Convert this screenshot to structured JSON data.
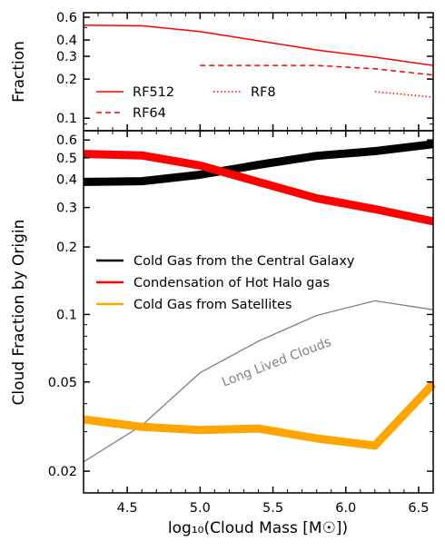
{
  "chart_data": [
    {
      "type": "line",
      "panel": "top",
      "ylabel": "Fraction",
      "yscale": "log",
      "xlim": [
        4.2,
        6.6
      ],
      "ylim": [
        0.08,
        0.65
      ],
      "yticks": [
        {
          "value": 0.6,
          "label": "0.6"
        },
        {
          "value": 0.4,
          "label": "0.4"
        },
        {
          "value": 0.3,
          "label": "0.3"
        },
        {
          "value": 0.2,
          "label": "0.2"
        },
        {
          "value": 0.1,
          "label": "0.1"
        }
      ],
      "series": [
        {
          "name": "RF512",
          "style": "solid",
          "color": "#ff0000",
          "x": [
            4.2,
            4.6,
            5.0,
            5.4,
            5.8,
            6.2,
            6.6
          ],
          "y": [
            0.52,
            0.515,
            0.465,
            0.395,
            0.335,
            0.295,
            0.255
          ]
        },
        {
          "name": "RF64",
          "style": "dashed",
          "color": "#ff0000",
          "x": [
            5.0,
            5.4,
            5.8,
            6.2,
            6.6
          ],
          "y": [
            0.255,
            0.255,
            0.255,
            0.24,
            0.215
          ]
        },
        {
          "name": "RF8",
          "style": "dotted",
          "color": "#ff0000",
          "x": [
            6.2,
            6.6
          ],
          "y": [
            0.16,
            0.145
          ]
        }
      ],
      "legend": [
        {
          "label": "RF512",
          "style": "solid"
        },
        {
          "label": "RF64",
          "style": "dashed"
        },
        {
          "label": "RF8",
          "style": "dotted"
        }
      ]
    },
    {
      "type": "line",
      "panel": "bottom",
      "xlabel": "log₁₀(Cloud Mass [M☉])",
      "ylabel": "Cloud Fraction by Origin",
      "yscale": "log",
      "xlim": [
        4.2,
        6.6
      ],
      "ylim": [
        0.016,
        0.66
      ],
      "xticks": [
        {
          "value": 4.5,
          "label": "4.5"
        },
        {
          "value": 5.0,
          "label": "5.0"
        },
        {
          "value": 5.5,
          "label": "5.5"
        },
        {
          "value": 6.0,
          "label": "6.0"
        },
        {
          "value": 6.5,
          "label": "6.5"
        }
      ],
      "yticks": [
        {
          "value": 0.6,
          "label": "0.6"
        },
        {
          "value": 0.5,
          "label": "0.5"
        },
        {
          "value": 0.4,
          "label": "0.4"
        },
        {
          "value": 0.3,
          "label": "0.3"
        },
        {
          "value": 0.2,
          "label": "0.2"
        },
        {
          "value": 0.1,
          "label": "0.1"
        },
        {
          "value": 0.05,
          "label": "0.05"
        },
        {
          "value": 0.02,
          "label": "0.02"
        }
      ],
      "series": [
        {
          "name": "Cold Gas from the Central Galaxy",
          "color": "#000000",
          "x": [
            4.2,
            4.6,
            5.0,
            5.4,
            5.8,
            6.2,
            6.6
          ],
          "y": [
            0.39,
            0.393,
            0.42,
            0.465,
            0.51,
            0.535,
            0.575
          ]
        },
        {
          "name": "Condensation of Hot Halo gas",
          "color": "#ff0000",
          "x": [
            4.2,
            4.6,
            5.0,
            5.4,
            5.8,
            6.2,
            6.6
          ],
          "y": [
            0.52,
            0.512,
            0.462,
            0.39,
            0.33,
            0.295,
            0.26
          ]
        },
        {
          "name": "Cold Gas from Satellites",
          "color": "#ffa500",
          "x": [
            4.2,
            4.6,
            5.0,
            5.4,
            5.8,
            6.2,
            6.6
          ],
          "y": [
            0.034,
            0.0315,
            0.0305,
            0.031,
            0.028,
            0.026,
            0.049
          ]
        },
        {
          "name": "Long Lived Clouds",
          "color": "#808080",
          "x": [
            4.2,
            4.6,
            5.0,
            5.4,
            5.8,
            6.2,
            6.6
          ],
          "y": [
            0.022,
            0.032,
            0.055,
            0.076,
            0.099,
            0.115,
            0.105
          ]
        }
      ],
      "legend": [
        {
          "label": "Cold Gas from the Central Galaxy",
          "color": "#000000"
        },
        {
          "label": "Condensation of Hot Halo gas",
          "color": "#ff0000"
        },
        {
          "label": "Cold Gas from Satellites",
          "color": "#ffa500"
        }
      ],
      "annotation": "Long Lived Clouds"
    }
  ]
}
